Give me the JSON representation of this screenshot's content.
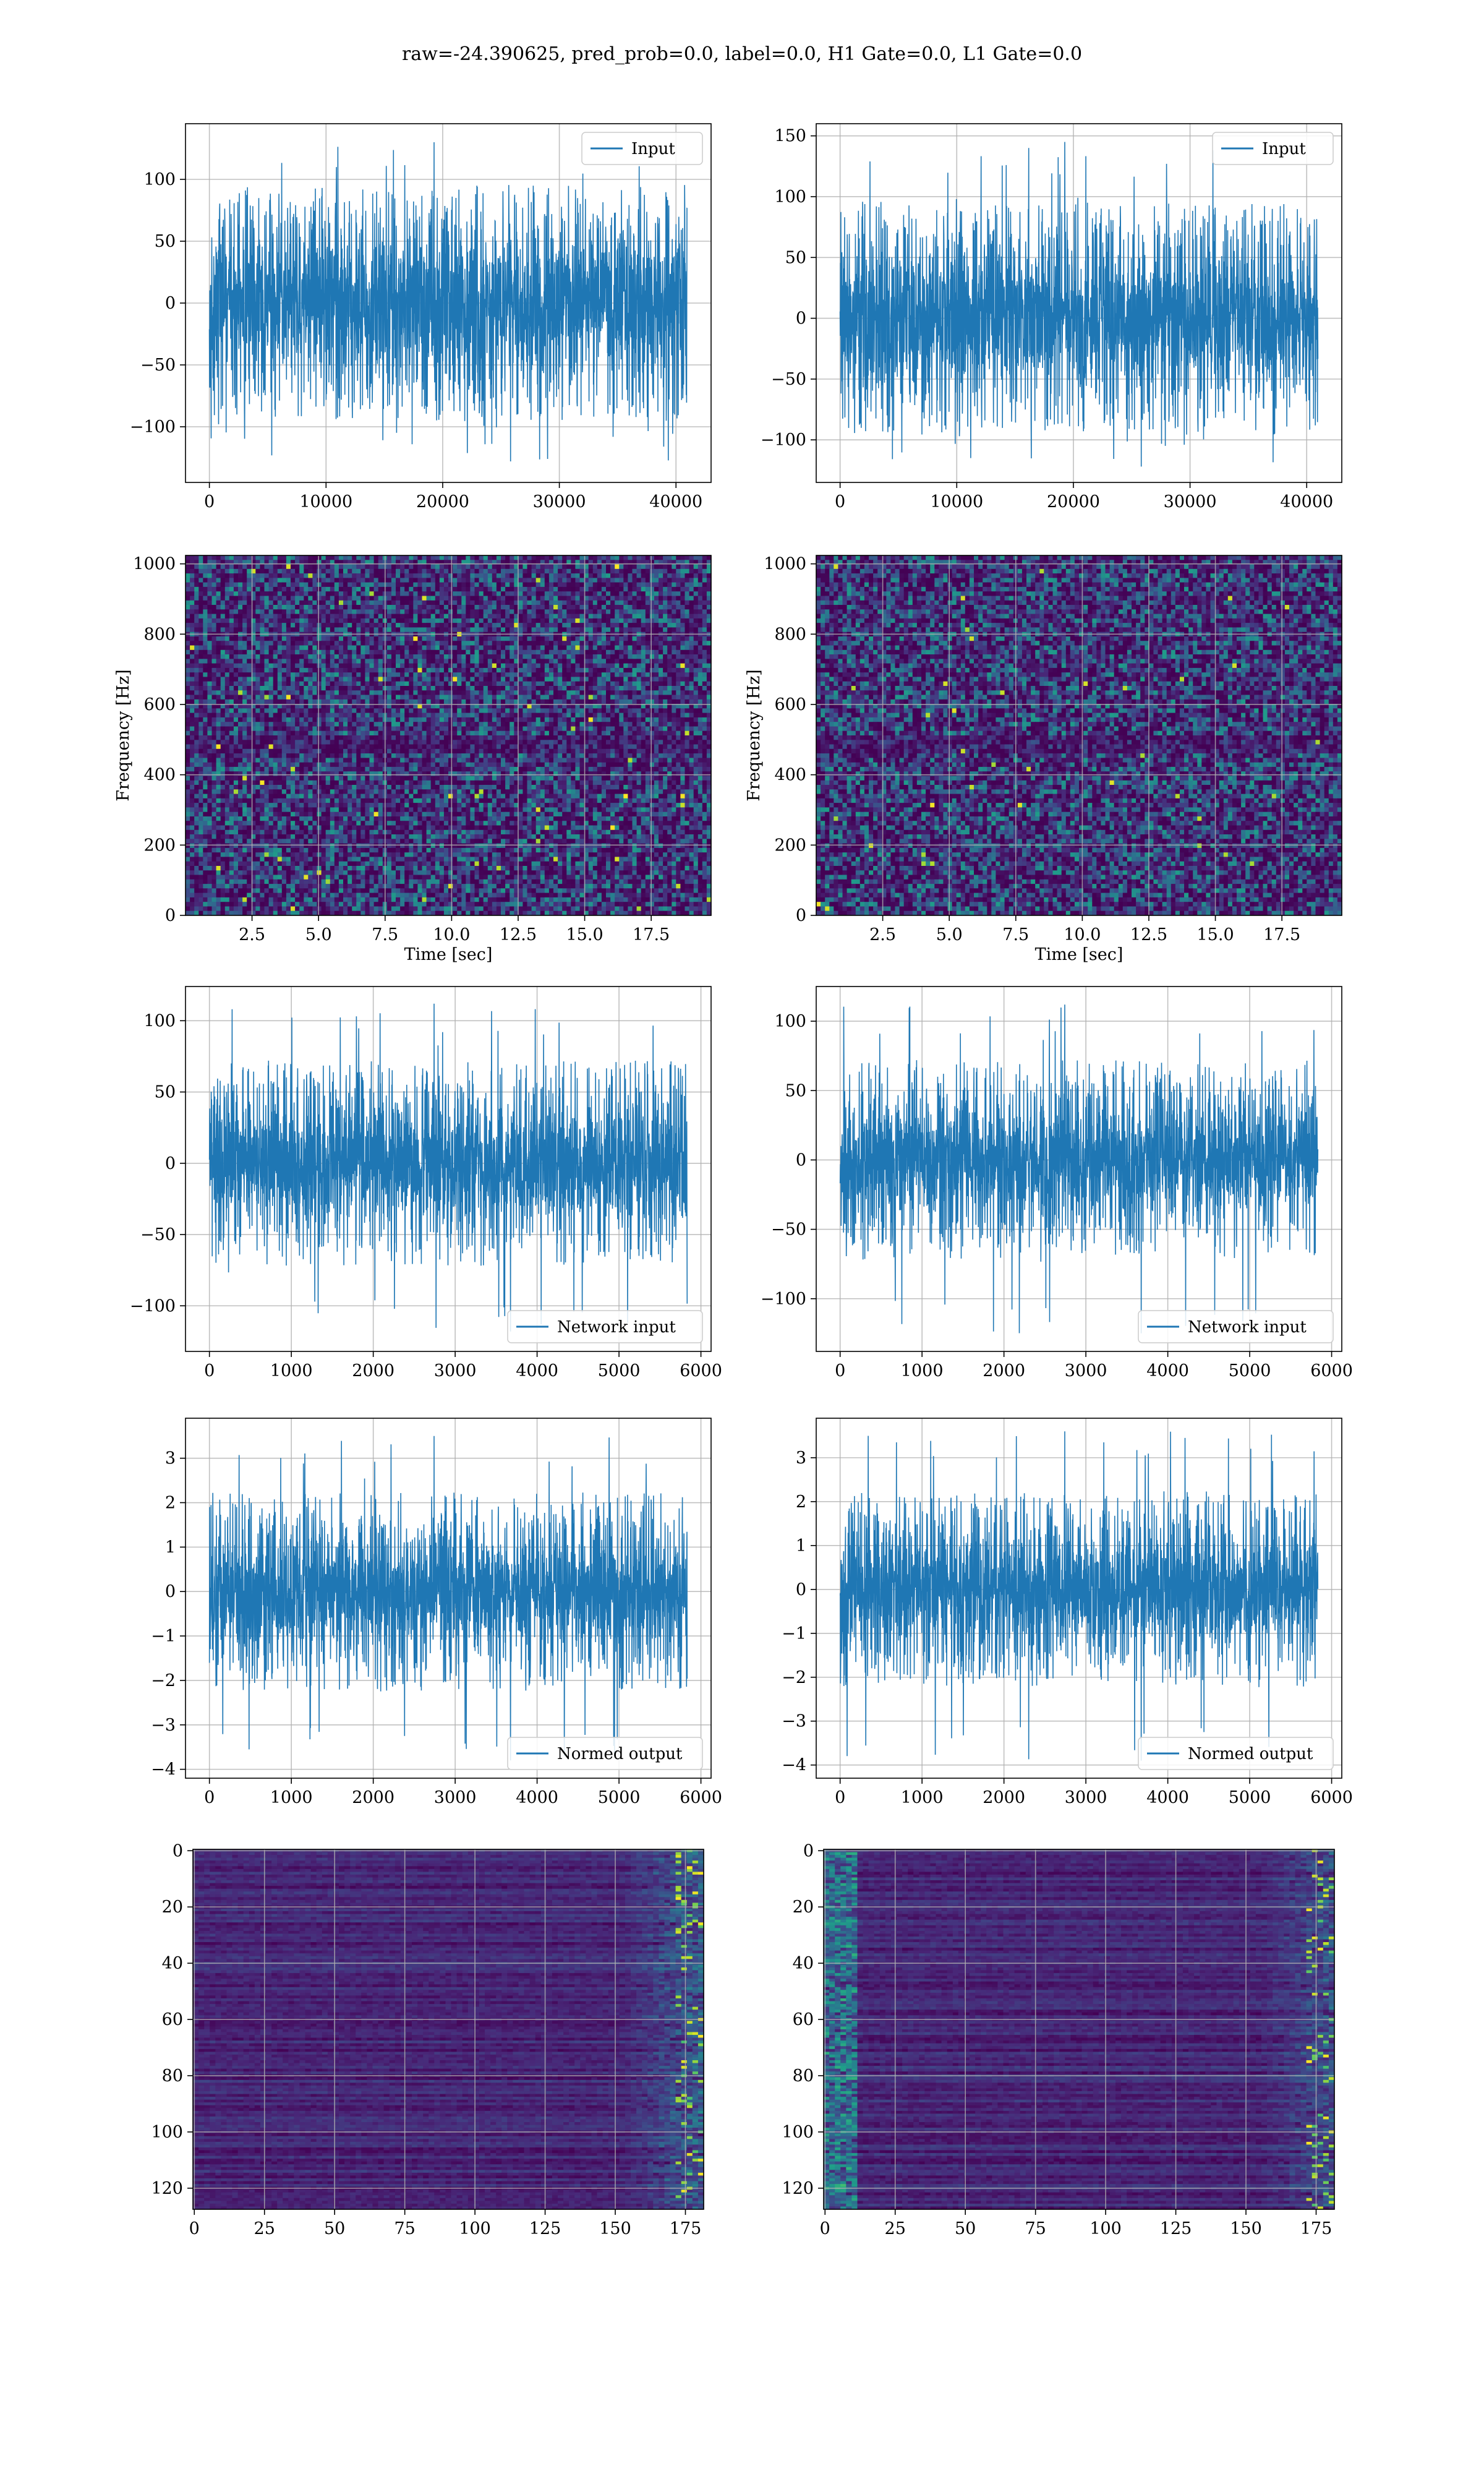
{
  "figure": {
    "title": "raw=-24.390625, pred_prob=0.0, label=0.0, H1 Gate=0.0, L1 Gate=0.0"
  },
  "colors": {
    "line": "#1f77b4",
    "viridis_low": "#440154",
    "viridis_mid": "#21918c",
    "viridis_high": "#fde725",
    "grid": "#b0b0b0"
  },
  "chart_data": [
    {
      "id": "input-h1",
      "type": "line",
      "label": "Input",
      "legend_loc": "upper right",
      "xlim": [
        -2048,
        43008
      ],
      "ylim": [
        -145,
        145
      ],
      "xticks": [
        0,
        10000,
        20000,
        30000,
        40000
      ],
      "yticks": [
        -100,
        -50,
        0,
        50,
        100
      ],
      "x": [
        0,
        40960
      ],
      "amplitude": {
        "core": 60,
        "peak_max": 130,
        "peak_min": -128
      },
      "grid": true
    },
    {
      "id": "input-l1",
      "type": "line",
      "label": "Input",
      "legend_loc": "upper right",
      "xlim": [
        -2048,
        43008
      ],
      "ylim": [
        -135,
        160
      ],
      "xticks": [
        0,
        10000,
        20000,
        30000,
        40000
      ],
      "yticks": [
        -100,
        -50,
        0,
        50,
        100,
        150
      ],
      "x": [
        0,
        40960
      ],
      "amplitude": {
        "core": 60,
        "peak_max": 145,
        "peak_min": -122
      },
      "grid": true
    },
    {
      "id": "spec-h1",
      "type": "heatmap",
      "colormap": "viridis",
      "xlabel": "Time [sec]",
      "ylabel": "Frequency [Hz]",
      "xlim": [
        0,
        19.75
      ],
      "ylim": [
        0,
        1024
      ],
      "xticks": [
        2.5,
        5.0,
        7.5,
        10.0,
        12.5,
        15.0,
        17.5
      ],
      "yticks": [
        0,
        200,
        400,
        600,
        800,
        1000
      ],
      "grid": true
    },
    {
      "id": "spec-l1",
      "type": "heatmap",
      "colormap": "viridis",
      "xlabel": "Time [sec]",
      "ylabel": "Frequency [Hz]",
      "xlim": [
        0,
        19.75
      ],
      "ylim": [
        0,
        1024
      ],
      "xticks": [
        2.5,
        5.0,
        7.5,
        10.0,
        12.5,
        15.0,
        17.5
      ],
      "yticks": [
        0,
        200,
        400,
        600,
        800,
        1000
      ],
      "grid": true
    },
    {
      "id": "netin-h1",
      "type": "line",
      "label": "Network input",
      "legend_loc": "lower right",
      "xlim": [
        -292,
        6124
      ],
      "ylim": [
        -132,
        124
      ],
      "xticks": [
        0,
        1000,
        2000,
        3000,
        4000,
        5000,
        6000
      ],
      "yticks": [
        -100,
        -50,
        0,
        50,
        100
      ],
      "x": [
        0,
        5832
      ],
      "amplitude": {
        "core": 45,
        "peak_max": 112,
        "peak_min": -118
      },
      "grid": true
    },
    {
      "id": "netin-l1",
      "type": "line",
      "label": "Network input",
      "legend_loc": "lower right",
      "xlim": [
        -292,
        6124
      ],
      "ylim": [
        -138,
        125
      ],
      "xticks": [
        0,
        1000,
        2000,
        3000,
        4000,
        5000,
        6000
      ],
      "yticks": [
        -100,
        -50,
        0,
        50,
        100
      ],
      "x": [
        0,
        5832
      ],
      "amplitude": {
        "core": 45,
        "peak_max": 112,
        "peak_min": -125
      },
      "grid": true
    },
    {
      "id": "normed-h1",
      "type": "line",
      "label": "Normed output",
      "legend_loc": "lower right",
      "xlim": [
        -292,
        6124
      ],
      "ylim": [
        -4.2,
        3.9
      ],
      "xticks": [
        0,
        1000,
        2000,
        3000,
        4000,
        5000,
        6000
      ],
      "yticks": [
        -4,
        -3,
        -2,
        -1,
        0,
        1,
        2,
        3
      ],
      "x": [
        0,
        5832
      ],
      "amplitude": {
        "core": 1.4,
        "peak_max": 3.5,
        "peak_min": -3.8
      },
      "grid": true
    },
    {
      "id": "normed-l1",
      "type": "line",
      "label": "Normed output",
      "legend_loc": "lower right",
      "xlim": [
        -292,
        6124
      ],
      "ylim": [
        -4.3,
        3.9
      ],
      "xticks": [
        0,
        1000,
        2000,
        3000,
        4000,
        5000,
        6000
      ],
      "yticks": [
        -4,
        -3,
        -2,
        -1,
        0,
        1,
        2,
        3
      ],
      "x": [
        0,
        5832
      ],
      "amplitude": {
        "core": 1.4,
        "peak_max": 3.6,
        "peak_min": -3.9
      },
      "grid": true
    },
    {
      "id": "feat-h1",
      "type": "heatmap",
      "colormap": "viridis",
      "rows": 128,
      "cols": 182,
      "xlim": [
        -0.5,
        181.5
      ],
      "ylim": [
        127.5,
        -0.5
      ],
      "xticks": [
        0,
        25,
        50,
        75,
        100,
        125,
        150,
        175
      ],
      "yticks": [
        0,
        20,
        40,
        60,
        80,
        100,
        120
      ],
      "grid": true
    },
    {
      "id": "feat-l1",
      "type": "heatmap",
      "colormap": "viridis",
      "rows": 128,
      "cols": 182,
      "xlim": [
        -0.5,
        181.5
      ],
      "ylim": [
        127.5,
        -0.5
      ],
      "xticks": [
        0,
        25,
        50,
        75,
        100,
        125,
        150,
        175
      ],
      "yticks": [
        0,
        20,
        40,
        60,
        80,
        100,
        120
      ],
      "grid": true
    }
  ]
}
